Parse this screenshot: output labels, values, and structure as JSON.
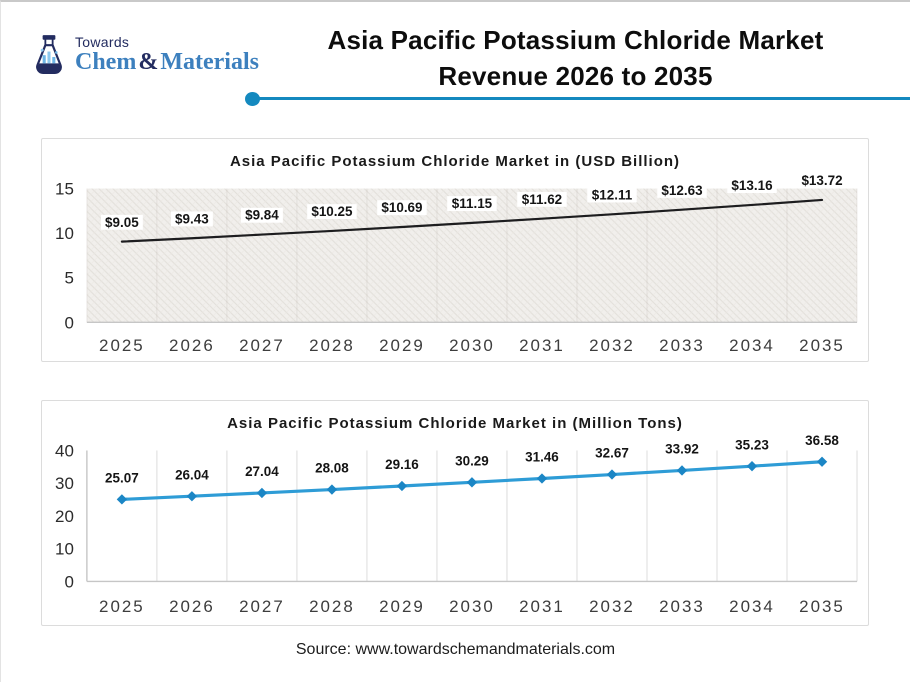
{
  "header": {
    "logo": {
      "tagline": "Towards",
      "name_parts": {
        "chem": "Chem",
        "amp": "&",
        "materials": "Materials"
      },
      "navy": "#232C60",
      "blue": "#3D80BE"
    },
    "title_line1": "Asia Pacific Potassium Chloride Market",
    "title_line2": "Revenue 2026 to 2035",
    "accent_color": "#1489BF"
  },
  "chart_data": [
    {
      "type": "line",
      "title": "Asia Pacific Potassium Chloride Market in (USD Billion)",
      "categories": [
        "2025",
        "2026",
        "2027",
        "2028",
        "2029",
        "2030",
        "2031",
        "2032",
        "2033",
        "2034",
        "2035"
      ],
      "values": [
        9.05,
        9.43,
        9.84,
        10.25,
        10.69,
        11.15,
        11.62,
        12.11,
        12.63,
        13.16,
        13.72
      ],
      "label_prefix": "$",
      "xlabel": "",
      "ylabel": "",
      "ylim": [
        0,
        15
      ],
      "yticks": [
        0,
        5,
        10,
        15
      ],
      "grid": "vertical",
      "legend": "none",
      "line_color": "#1d1d1f",
      "line_width": 2.2,
      "marker": "none",
      "plot_bg": "hatch",
      "grid_color": "rgba(120,110,100,0.12)",
      "label_bg": "#ffffff"
    },
    {
      "type": "line",
      "title": "Asia Pacific Potassium Chloride Market in (Million Tons)",
      "categories": [
        "2025",
        "2026",
        "2027",
        "2028",
        "2029",
        "2030",
        "2031",
        "2032",
        "2033",
        "2034",
        "2035"
      ],
      "values": [
        25.07,
        26.04,
        27.04,
        28.08,
        29.16,
        30.29,
        31.46,
        32.67,
        33.92,
        35.23,
        36.58
      ],
      "label_prefix": "",
      "xlabel": "",
      "ylabel": "",
      "ylim": [
        0,
        40
      ],
      "yticks": [
        0,
        10,
        20,
        30,
        40
      ],
      "grid": "vertical",
      "legend": "none",
      "line_color": "#2E9CD6",
      "line_width": 3.2,
      "marker": "diamond",
      "marker_color": "#1B86C5",
      "plot_bg": "white",
      "grid_color": "#dcdcdc",
      "label_bg": "#ffffff"
    }
  ],
  "footer": {
    "source": "Source: www.towardschemandmaterials.com"
  }
}
